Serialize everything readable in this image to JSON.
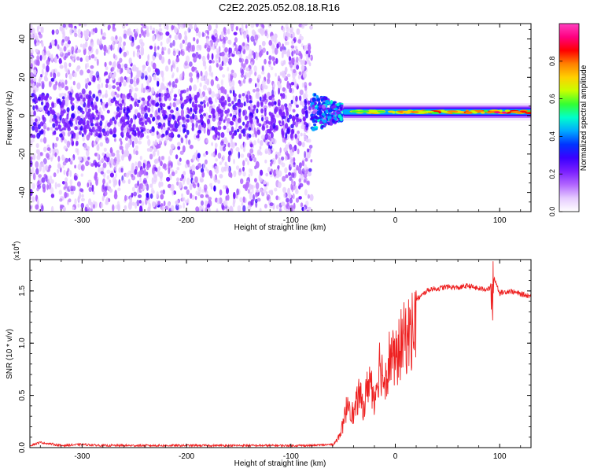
{
  "figure": {
    "title": "C2E2.2025.052.08.18.R16"
  },
  "chart_data": [
    {
      "type": "heatmap",
      "xlabel": "Height of straight line (km)",
      "ylabel": "Frequency (Hz)",
      "xlim": [
        -350,
        130
      ],
      "ylim": [
        -50,
        48
      ],
      "xticks": [
        -300,
        -200,
        -100,
        0,
        100
      ],
      "yticks": [
        -40,
        -20,
        0,
        20,
        40
      ],
      "colorbar": {
        "label": "Normalized spectral amplitude",
        "range": [
          0.0,
          1.0
        ],
        "ticks": [
          "0.0",
          "0.2",
          "0.4",
          "0.6",
          "0.8"
        ],
        "colormap": [
          "#ffffff",
          "#e6ccff",
          "#b266ff",
          "#7a1fff",
          "#3a00ff",
          "#0033ff",
          "#00aaff",
          "#00ffcc",
          "#33ff33",
          "#c8ff00",
          "#ffd000",
          "#ff8000",
          "#ff0000",
          "#ff0080",
          "#ff40c0"
        ]
      },
      "regions": [
        {
          "x_from": -350,
          "x_to": -80,
          "description_key": "broadband noise",
          "freq_from": -50,
          "freq_to": 48,
          "level": 0.15
        },
        {
          "x_from": -80,
          "x_to": -50,
          "freq_center": 2,
          "freq_halfwidth": 10,
          "level": 0.4
        },
        {
          "x_from": -50,
          "x_to": 130,
          "freq_center": 2,
          "freq_halfwidth": 2,
          "level": 0.95
        }
      ]
    },
    {
      "type": "line",
      "xlabel": "Height of straight line (km)",
      "ylabel": "SNR (10 * v/v)",
      "y_multiplier": "(x10^4)",
      "xlim": [
        -350,
        130
      ],
      "ylim": [
        0,
        1.8
      ],
      "xticks": [
        -300,
        -200,
        -100,
        0,
        100
      ],
      "yticks": [
        "0.0",
        "0.5",
        "1.0",
        "1.5"
      ],
      "color": "#ee2222",
      "x": [
        -350,
        -340,
        -320,
        -300,
        -280,
        -250,
        -200,
        -150,
        -100,
        -80,
        -60,
        -55,
        -50,
        -45,
        -40,
        -35,
        -30,
        -25,
        -20,
        -15,
        -10,
        -5,
        0,
        5,
        10,
        15,
        20,
        25,
        30,
        35,
        40,
        50,
        60,
        70,
        80,
        90,
        95,
        100,
        110,
        120,
        130
      ],
      "y": [
        0.02,
        0.05,
        0.02,
        0.03,
        0.02,
        0.02,
        0.02,
        0.02,
        0.02,
        0.02,
        0.03,
        0.1,
        0.25,
        0.55,
        0.35,
        0.6,
        0.45,
        0.8,
        0.55,
        0.95,
        0.75,
        1.05,
        0.95,
        1.15,
        1.25,
        1.3,
        1.42,
        1.45,
        1.5,
        1.52,
        1.52,
        1.54,
        1.53,
        1.55,
        1.52,
        1.52,
        1.62,
        1.48,
        1.5,
        1.47,
        1.45
      ]
    }
  ]
}
